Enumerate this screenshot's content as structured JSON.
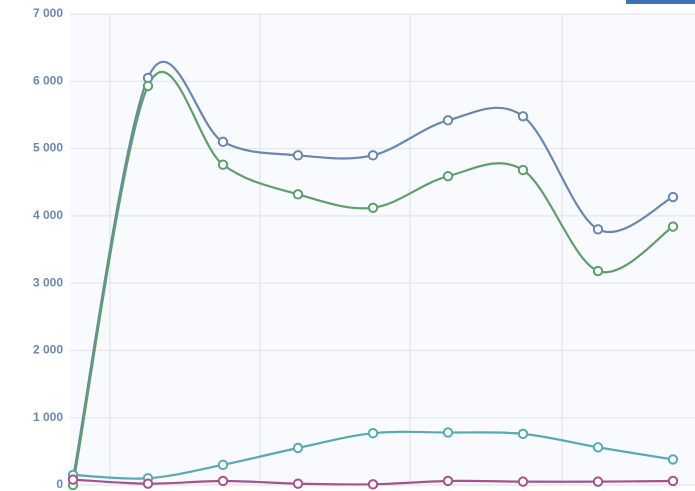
{
  "chart_data": {
    "type": "line",
    "categories": [
      null,
      null,
      null,
      null,
      null,
      null,
      null,
      null,
      null
    ],
    "series": [
      {
        "color": "#6b87ad",
        "values": [
          100,
          6050,
          5100,
          4900,
          4900,
          5420,
          5480,
          3800,
          4280
        ]
      },
      {
        "color": "#5f9e6e",
        "values": [
          0,
          5930,
          4760,
          4320,
          4120,
          4590,
          4680,
          3180,
          3840
        ]
      },
      {
        "color": "#5aa9b0",
        "values": [
          150,
          100,
          300,
          550,
          770,
          780,
          760,
          560,
          380
        ]
      },
      {
        "color": "#a8518a",
        "values": [
          80,
          20,
          60,
          20,
          10,
          60,
          50,
          50,
          60
        ]
      }
    ],
    "ylim": [
      0,
      7000
    ],
    "yticks": [
      0,
      {
        "value": 1000,
        "label": "1 000"
      },
      {
        "value": 2000,
        "label": "2 000"
      },
      {
        "value": 3000,
        "label": "3 000"
      },
      {
        "value": 4000,
        "label": "4 000"
      },
      {
        "value": 5000,
        "label": "5 000"
      },
      {
        "value": 6000,
        "label": "6 000"
      },
      {
        "value": 7000,
        "label": "7 000"
      }
    ],
    "grid": true
  }
}
